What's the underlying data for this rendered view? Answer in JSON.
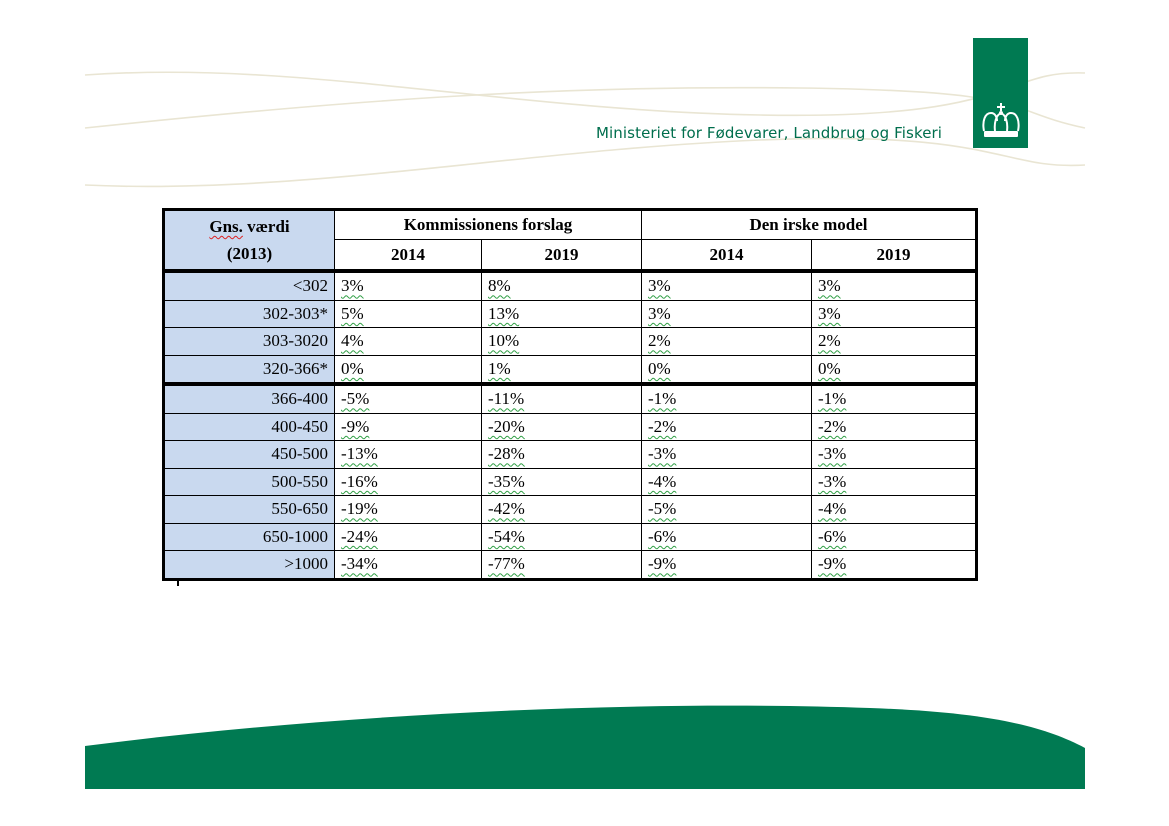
{
  "header": {
    "ministry_name": "Ministeriet for Fødevarer, Landbrug og Fiskeri",
    "logo": "crown-logo"
  },
  "colors": {
    "brand_green": "#007a52",
    "header_cell_blue": "#c9d9ef",
    "wave_line": "#e8e4d0"
  },
  "table": {
    "corner_line1_word1": "Gns.",
    "corner_line1_word2": " værdi",
    "corner_line2": "(2013)",
    "group1": "Kommissionens forslag",
    "group2": "Den irske model",
    "years": [
      "2014",
      "2019",
      "2014",
      "2019"
    ],
    "rows": [
      {
        "label": "<302",
        "values": [
          "3%",
          "8%",
          "3%",
          "3%"
        ]
      },
      {
        "label": "302-303*",
        "values": [
          "5%",
          "13%",
          "3%",
          "3%"
        ]
      },
      {
        "label": "303-3020",
        "values": [
          "4%",
          "10%",
          "2%",
          "2%"
        ]
      },
      {
        "label": "320-366*",
        "values": [
          "0%",
          "1%",
          "0%",
          "0%"
        ]
      },
      {
        "label": "366-400",
        "values": [
          "-5%",
          "-11%",
          "-1%",
          "-1%"
        ]
      },
      {
        "label": "400-450",
        "values": [
          "-9%",
          "-20%",
          "-2%",
          "-2%"
        ]
      },
      {
        "label": "450-500",
        "values": [
          "-13%",
          "-28%",
          "-3%",
          "-3%"
        ]
      },
      {
        "label": "500-550",
        "values": [
          "-16%",
          "-35%",
          "-4%",
          "-3%"
        ]
      },
      {
        "label": "550-650",
        "values": [
          "-19%",
          "-42%",
          "-5%",
          "-4%"
        ]
      },
      {
        "label": "650-1000",
        "values": [
          "-24%",
          "-54%",
          "-6%",
          "-6%"
        ]
      },
      {
        "label": ">1000",
        "values": [
          "-34%",
          "-77%",
          "-9%",
          "-9%"
        ]
      }
    ]
  }
}
